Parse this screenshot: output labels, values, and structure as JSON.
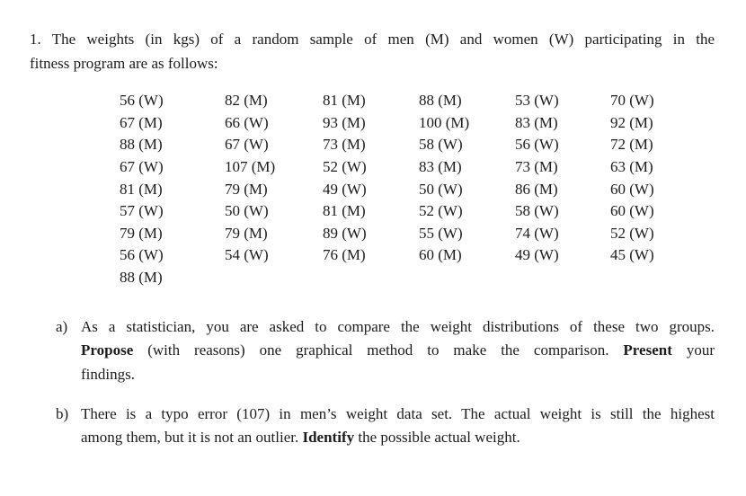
{
  "document": {
    "intro": {
      "line1": "1. The weights (in kgs) of a random sample of men (M) and women (W) participating in the",
      "line2": "fitness program are as follows:"
    },
    "weights_table": {
      "rows": [
        [
          "56 (W)",
          "82 (M)",
          "81 (M)",
          "88 (M)",
          "53 (W)",
          "70 (W)"
        ],
        [
          "67 (M)",
          "66 (W)",
          "93 (M)",
          "100 (M)",
          "83 (M)",
          "92 (M)"
        ],
        [
          "88 (M)",
          "67 (W)",
          "73 (M)",
          "58 (W)",
          "56 (W)",
          "72 (M)"
        ],
        [
          "67 (W)",
          "107 (M)",
          "52 (W)",
          "83 (M)",
          "73 (M)",
          "63 (M)"
        ],
        [
          "81 (M)",
          "79 (M)",
          "49 (W)",
          "50 (W)",
          "86 (M)",
          "60 (W)"
        ],
        [
          "57 (W)",
          "50 (W)",
          "81 (M)",
          "52 (W)",
          "58 (W)",
          "60 (W)"
        ],
        [
          "79 (M)",
          "79 (M)",
          "89 (W)",
          "55 (W)",
          "74 (W)",
          "52 (W)"
        ],
        [
          "56 (W)",
          "54 (W)",
          "76 (M)",
          "60 (M)",
          "49 (W)",
          "45 (W)"
        ],
        [
          "88 (M)"
        ]
      ]
    },
    "question_a": {
      "label": "a)",
      "line1": "As a statistician, you are asked to compare the weight distributions of these two groups.",
      "line2_bold1": "Propose",
      "line2_text1": " (with reasons) one graphical method to make the comparison. ",
      "line2_bold2": "Present",
      "line2_text2": " your",
      "line3": "findings."
    },
    "question_b": {
      "label": "b)",
      "line1": "There is a typo error (107) in men’s weight data set. The actual weight is still the highest",
      "line2_text1": "among them, but it is not an outlier. ",
      "line2_bold": "Identify",
      "line2_text2": " the possible actual weight."
    }
  }
}
